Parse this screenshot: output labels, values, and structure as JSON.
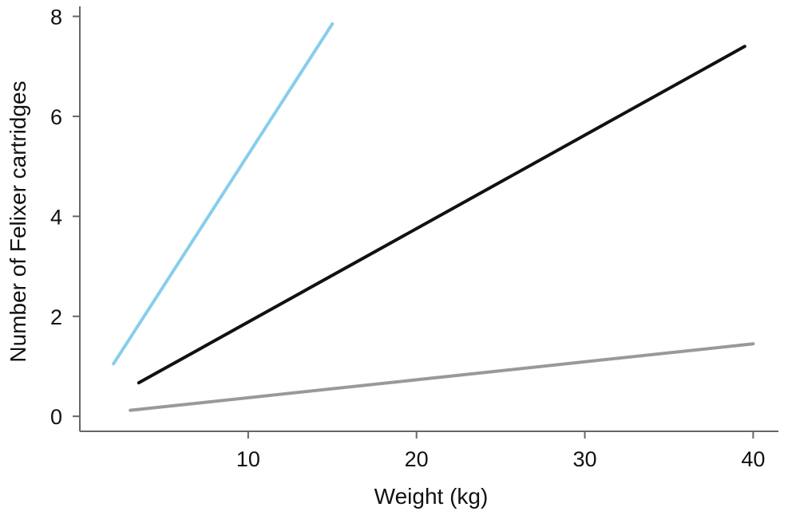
{
  "chart_data": {
    "type": "line",
    "title": "",
    "xlabel": "Weight (kg)",
    "ylabel": "Number of Felixer cartridges",
    "xlim": [
      0,
      41.5
    ],
    "ylim": [
      -0.3,
      8.2
    ],
    "x_ticks": [
      "10",
      "20",
      "30",
      "40"
    ],
    "y_ticks": [
      "0",
      "2",
      "4",
      "6",
      "8"
    ],
    "grid": false,
    "legend": "none",
    "series": [
      {
        "color": "#87ceeb",
        "x": [
          2,
          15
        ],
        "y": [
          1.05,
          7.85
        ]
      },
      {
        "color": "#111111",
        "x": [
          3.5,
          39.5
        ],
        "y": [
          0.67,
          7.4
        ]
      },
      {
        "color": "#999999",
        "x": [
          3,
          40
        ],
        "y": [
          0.12,
          1.45
        ]
      }
    ]
  }
}
